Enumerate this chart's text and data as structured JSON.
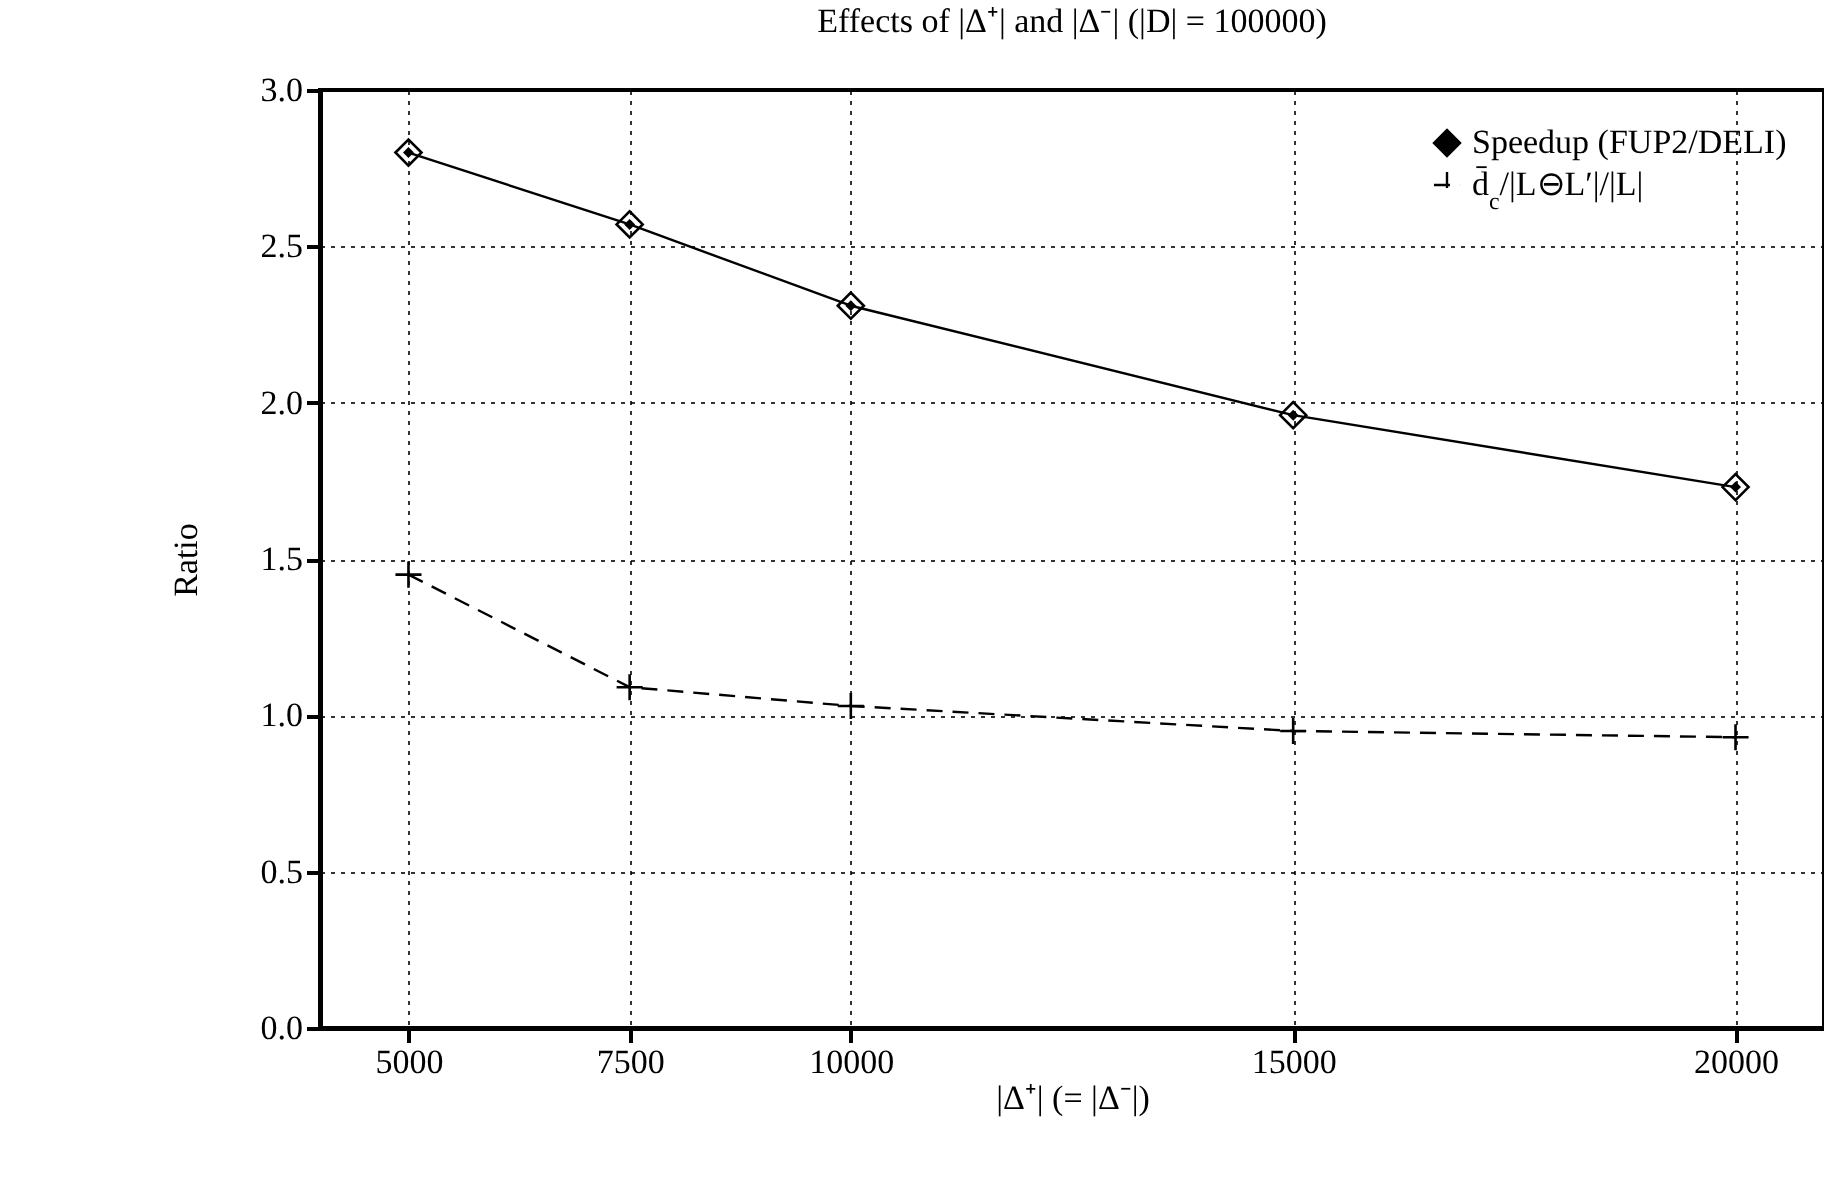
{
  "chart_data": {
    "type": "line",
    "title": "Effects of |Δ⁺| and |Δ⁻| (|D| = 100000)",
    "xlabel": "|Δ⁺| (= |Δ⁻|)",
    "ylabel": "Ratio",
    "x": [
      5000,
      7500,
      10000,
      15000,
      20000
    ],
    "series": [
      {
        "name": "Speedup (FUP2/DELI)",
        "color": "#000000",
        "marker": "diamond",
        "line_style": "solid",
        "values": [
          2.8,
          2.57,
          2.31,
          1.96,
          1.73
        ]
      },
      {
        "name": "d̄$_{c}$/|L⊖L′|/|L|",
        "color": "#000000",
        "marker": "cross",
        "line_style": "dashed",
        "values": [
          1.45,
          1.09,
          1.03,
          0.95,
          0.93
        ]
      }
    ],
    "xlim": [
      4000,
      21000
    ],
    "xticks": [
      5000,
      7500,
      10000,
      15000,
      20000
    ],
    "ylim": [
      0,
      3
    ],
    "yticks": [
      {
        "value": 0,
        "label": "0.0"
      },
      {
        "value": 0.5,
        "label": "0.5"
      },
      {
        "value": 1,
        "label": "1.0"
      },
      {
        "value": 1.5,
        "label": "1.5"
      },
      {
        "value": 2,
        "label": "2.0"
      },
      {
        "value": 2.5,
        "label": "2.5"
      },
      {
        "value": 3,
        "label": "3.0"
      }
    ],
    "grid": true,
    "legend": "top right"
  }
}
